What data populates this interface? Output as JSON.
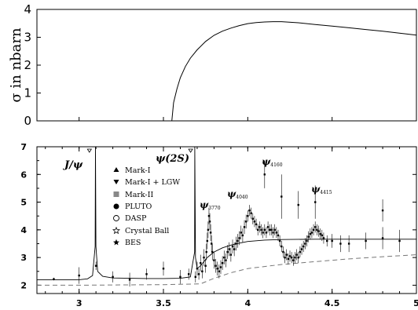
{
  "chart_data": [
    {
      "type": "line",
      "ylabel": "σ in nbarn",
      "xlim": [
        2.75,
        5.0
      ],
      "ylim": [
        0,
        4
      ],
      "yticks": [
        "0",
        "1",
        "2",
        "3",
        "4"
      ],
      "series": [
        {
          "x": [
            3.55,
            3.56,
            3.58,
            3.6,
            3.63,
            3.66,
            3.7,
            3.75,
            3.8,
            3.85,
            3.9,
            3.95,
            4.0,
            4.05,
            4.1,
            4.15,
            4.2,
            4.3,
            4.4,
            4.5,
            4.6,
            4.7,
            4.8,
            4.9,
            5.0
          ],
          "y": [
            0,
            0.65,
            1.15,
            1.55,
            1.95,
            2.25,
            2.55,
            2.85,
            3.07,
            3.22,
            3.33,
            3.42,
            3.49,
            3.53,
            3.55,
            3.56,
            3.56,
            3.52,
            3.46,
            3.4,
            3.34,
            3.28,
            3.22,
            3.15,
            3.08
          ]
        }
      ]
    },
    {
      "type": "scatter",
      "xlim": [
        2.75,
        5.0
      ],
      "ylim": [
        1.7,
        7
      ],
      "xticks": [
        "3",
        "3.5",
        "4",
        "4.5",
        "5"
      ],
      "yticks": [
        "2",
        "3",
        "4",
        "5",
        "6",
        "7"
      ],
      "annotations": {
        "jpsi": "J/ψ",
        "psi2s": "ψ(2S)",
        "psi3770": {
          "main": "ψ",
          "sub": "3770"
        },
        "psi4040": {
          "main": "ψ",
          "sub": "4040"
        },
        "psi4160": {
          "main": "ψ",
          "sub": "4160"
        },
        "psi4415": {
          "main": "ψ",
          "sub": "4415"
        }
      },
      "legend": {
        "position": "top-left",
        "entries": [
          {
            "marker": "triangle-up",
            "label": "Mark-I"
          },
          {
            "marker": "triangle-down",
            "label": "Mark-I + LGW"
          },
          {
            "marker": "square",
            "label": "Mark-II"
          },
          {
            "marker": "circle-filled",
            "label": "PLUTO"
          },
          {
            "marker": "circle-open",
            "label": "DASP"
          },
          {
            "marker": "star-open",
            "label": "Crystal Ball"
          },
          {
            "marker": "star-filled",
            "label": "BES"
          }
        ]
      },
      "theory_curve": {
        "x": [
          2.75,
          3.0,
          3.05,
          3.08,
          3.095,
          3.097,
          3.1,
          3.11,
          3.14,
          3.2,
          3.3,
          3.4,
          3.5,
          3.6,
          3.66,
          3.685,
          3.686,
          3.69,
          3.7,
          3.72,
          3.76,
          3.8,
          3.85,
          3.9,
          3.95,
          4.0,
          4.1,
          4.2,
          4.4,
          4.6,
          4.8,
          5.0
        ],
        "y": [
          2.2,
          2.2,
          2.23,
          2.35,
          3.4,
          7.0,
          3.4,
          2.5,
          2.32,
          2.26,
          2.25,
          2.24,
          2.24,
          2.25,
          2.3,
          3.2,
          7.0,
          3.0,
          2.6,
          2.7,
          3.0,
          3.2,
          3.35,
          3.45,
          3.52,
          3.58,
          3.63,
          3.65,
          3.66,
          3.66,
          3.66,
          3.66
        ]
      },
      "baseline_curve": {
        "x": [
          2.75,
          3.0,
          3.5,
          3.72,
          3.8,
          3.9,
          4.0,
          4.2,
          4.4,
          4.6,
          4.8,
          5.0
        ],
        "y": [
          2.0,
          2.0,
          2.02,
          2.05,
          2.25,
          2.45,
          2.6,
          2.75,
          2.85,
          2.95,
          3.03,
          3.1
        ]
      },
      "points": [
        [
          2.85,
          2.22,
          0.05
        ],
        [
          3.0,
          2.35,
          0.3
        ],
        [
          3.1,
          2.7,
          0.15
        ],
        [
          3.2,
          2.3,
          0.2
        ],
        [
          3.3,
          2.2,
          0.25
        ],
        [
          3.4,
          2.4,
          0.2
        ],
        [
          3.5,
          2.6,
          0.25
        ],
        [
          3.6,
          2.3,
          0.25
        ],
        [
          3.65,
          2.4,
          0.2
        ],
        [
          3.69,
          2.3,
          0.2
        ],
        [
          3.7,
          2.6,
          0.25
        ],
        [
          3.71,
          2.4,
          0.2
        ],
        [
          3.72,
          2.8,
          0.3
        ],
        [
          3.73,
          2.5,
          0.25
        ],
        [
          3.74,
          3.0,
          0.3
        ],
        [
          3.75,
          2.7,
          0.25
        ],
        [
          3.755,
          3.2,
          0.3
        ],
        [
          3.76,
          3.6,
          0.3
        ],
        [
          3.765,
          4.0,
          0.3
        ],
        [
          3.77,
          4.5,
          0.3
        ],
        [
          3.775,
          4.3,
          0.3
        ],
        [
          3.78,
          3.9,
          0.3
        ],
        [
          3.785,
          3.5,
          0.3
        ],
        [
          3.79,
          3.2,
          0.3
        ],
        [
          3.8,
          2.9,
          0.3
        ],
        [
          3.81,
          2.7,
          0.25
        ],
        [
          3.82,
          2.6,
          0.25
        ],
        [
          3.83,
          2.5,
          0.25
        ],
        [
          3.84,
          2.65,
          0.25
        ],
        [
          3.85,
          2.8,
          0.25
        ],
        [
          3.86,
          3.0,
          0.25
        ],
        [
          3.87,
          2.9,
          0.25
        ],
        [
          3.88,
          3.2,
          0.25
        ],
        [
          3.89,
          3.3,
          0.25
        ],
        [
          3.9,
          3.1,
          0.25
        ],
        [
          3.91,
          3.4,
          0.25
        ],
        [
          3.92,
          3.3,
          0.25
        ],
        [
          3.93,
          3.5,
          0.25
        ],
        [
          3.94,
          3.6,
          0.25
        ],
        [
          3.95,
          3.7,
          0.25
        ],
        [
          3.96,
          3.9,
          0.25
        ],
        [
          3.97,
          3.8,
          0.25
        ],
        [
          3.98,
          4.1,
          0.25
        ],
        [
          3.99,
          4.3,
          0.25
        ],
        [
          4.0,
          4.5,
          0.2
        ],
        [
          4.01,
          4.7,
          0.2
        ],
        [
          4.02,
          4.6,
          0.2
        ],
        [
          4.03,
          4.4,
          0.2
        ],
        [
          4.04,
          4.3,
          0.2
        ],
        [
          4.05,
          4.2,
          0.2
        ],
        [
          4.06,
          4.0,
          0.2
        ],
        [
          4.07,
          4.1,
          0.2
        ],
        [
          4.08,
          4.0,
          0.2
        ],
        [
          4.09,
          3.9,
          0.2
        ],
        [
          4.1,
          4.0,
          0.2
        ],
        [
          4.11,
          3.9,
          0.2
        ],
        [
          4.12,
          4.1,
          0.2
        ],
        [
          4.13,
          4.0,
          0.2
        ],
        [
          4.14,
          4.0,
          0.2
        ],
        [
          4.15,
          3.9,
          0.2
        ],
        [
          4.16,
          4.0,
          0.2
        ],
        [
          4.17,
          3.9,
          0.2
        ],
        [
          4.18,
          3.8,
          0.2
        ],
        [
          4.19,
          3.6,
          0.2
        ],
        [
          4.2,
          3.4,
          0.2
        ],
        [
          4.21,
          3.2,
          0.2
        ],
        [
          4.22,
          3.0,
          0.2
        ],
        [
          4.23,
          3.1,
          0.2
        ],
        [
          4.24,
          2.95,
          0.2
        ],
        [
          4.25,
          3.05,
          0.2
        ],
        [
          4.26,
          3.0,
          0.2
        ],
        [
          4.27,
          2.9,
          0.2
        ],
        [
          4.28,
          3.0,
          0.2
        ],
        [
          4.29,
          3.1,
          0.2
        ],
        [
          4.3,
          3.0,
          0.2
        ],
        [
          4.31,
          3.2,
          0.2
        ],
        [
          4.32,
          3.3,
          0.2
        ],
        [
          4.33,
          3.4,
          0.2
        ],
        [
          4.34,
          3.5,
          0.2
        ],
        [
          4.35,
          3.6,
          0.2
        ],
        [
          4.36,
          3.75,
          0.2
        ],
        [
          4.37,
          3.85,
          0.2
        ],
        [
          4.38,
          3.9,
          0.2
        ],
        [
          4.39,
          4.0,
          0.2
        ],
        [
          4.4,
          4.1,
          0.2
        ],
        [
          4.41,
          4.0,
          0.2
        ],
        [
          4.42,
          3.95,
          0.2
        ],
        [
          4.43,
          3.85,
          0.2
        ],
        [
          4.44,
          3.8,
          0.2
        ],
        [
          4.45,
          3.7,
          0.2
        ],
        [
          4.47,
          3.6,
          0.2
        ],
        [
          4.5,
          3.6,
          0.25
        ],
        [
          4.55,
          3.5,
          0.3
        ],
        [
          4.6,
          3.5,
          0.3
        ],
        [
          4.7,
          3.6,
          0.3
        ],
        [
          4.8,
          3.7,
          0.4
        ],
        [
          4.9,
          3.6,
          0.4
        ],
        [
          4.1,
          6.0,
          0.5
        ],
        [
          4.2,
          5.2,
          0.8
        ],
        [
          4.3,
          4.9,
          0.5
        ],
        [
          4.4,
          5.0,
          0.6
        ],
        [
          4.8,
          4.7,
          0.4
        ]
      ]
    }
  ]
}
